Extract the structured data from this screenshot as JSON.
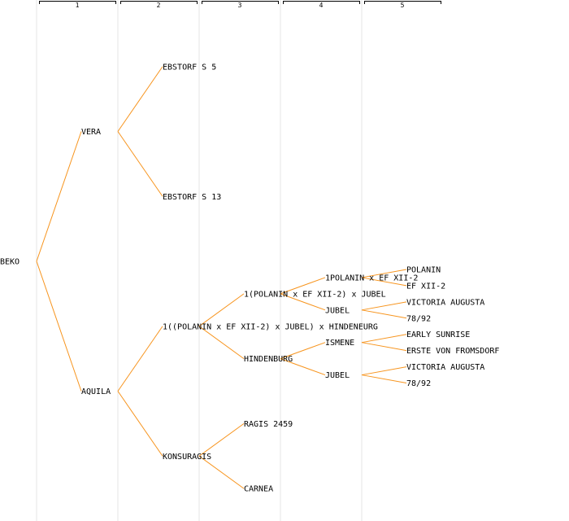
{
  "generations": [
    "1",
    "2",
    "3",
    "4",
    "5"
  ],
  "colors": {
    "edge": "#f7941d",
    "separator": "#e4e4e4",
    "text": "#000000"
  },
  "tree": {
    "name": "BEKO",
    "children": [
      {
        "name": "VERA",
        "children": [
          {
            "name": "EBSTORF S 5"
          },
          {
            "name": "EBSTORF S 13"
          }
        ]
      },
      {
        "name": "AQUILA",
        "children": [
          {
            "name": "1((POLANIN x EF XII-2) x JUBEL) x HINDENEURG",
            "children": [
              {
                "name": "1(POLANIN x EF XII-2) x JUBEL",
                "children": [
                  {
                    "name": "1POLANIN x EF XII-2",
                    "children": [
                      {
                        "name": "POLANIN"
                      },
                      {
                        "name": "EF XII-2"
                      }
                    ]
                  },
                  {
                    "name": "JUBEL",
                    "children": [
                      {
                        "name": "VICTORIA AUGUSTA"
                      },
                      {
                        "name": "78/92"
                      }
                    ]
                  }
                ]
              },
              {
                "name": "HINDENBURG",
                "children": [
                  {
                    "name": "ISMENE",
                    "children": [
                      {
                        "name": "EARLY SUNRISE"
                      },
                      {
                        "name": "ERSTE VON FROMSDORF"
                      }
                    ]
                  },
                  {
                    "name": "JUBEL",
                    "children": [
                      {
                        "name": "VICTORIA AUGUSTA"
                      },
                      {
                        "name": "78/92"
                      }
                    ]
                  }
                ]
              }
            ]
          },
          {
            "name": "KONSURAGIS",
            "children": [
              {
                "name": "RAGIS 2459"
              },
              {
                "name": "CARNEA"
              }
            ]
          }
        ]
      }
    ]
  }
}
